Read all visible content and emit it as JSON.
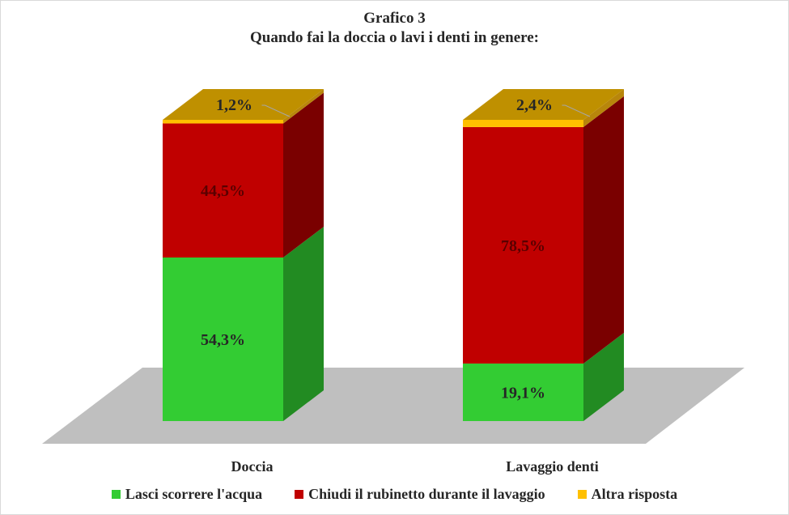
{
  "chart_data": {
    "type": "bar",
    "stacked": true,
    "three_d": true,
    "title": "Grafico 3",
    "subtitle": "Quando  fai la doccia o lavi i denti  in genere:",
    "categories": [
      "Doccia",
      "Lavaggio denti"
    ],
    "series": [
      {
        "name": "Lasci scorrere l'acqua",
        "values": [
          54.3,
          19.1
        ],
        "labels": [
          "54,3%",
          "19,1%"
        ],
        "color": "#33cc33",
        "side_color": "#228b22"
      },
      {
        "name": "Chiudi il rubinetto durante il lavaggio",
        "values": [
          44.5,
          78.5
        ],
        "labels": [
          "44,5%",
          "78,5%"
        ],
        "color": "#c00000",
        "side_color": "#7a0000"
      },
      {
        "name": "Altra risposta",
        "values": [
          1.2,
          2.4
        ],
        "labels": [
          "1,2%",
          "2,4%"
        ],
        "color": "#ffc000",
        "side_color": "#b8860b"
      }
    ],
    "top_color": "#bf9000",
    "floor_color": "#bfbfbf",
    "ylim": [
      0,
      100
    ],
    "legend_position": "bottom"
  }
}
